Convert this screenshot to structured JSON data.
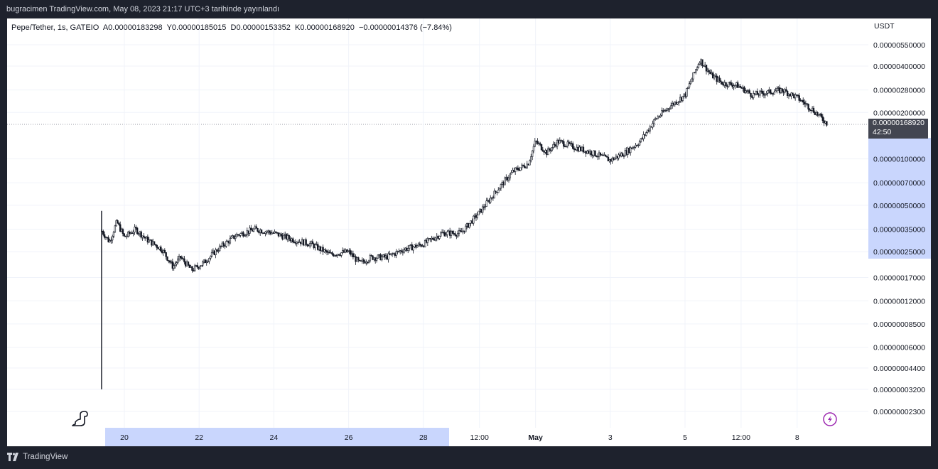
{
  "header": {
    "publisher_line": "bugracimen TradingView.com, May 08, 2023 21:17 UTC+3 tarihinde yayınlandı"
  },
  "legend": {
    "symbol": "Pepe/Tether, 1s, GATEIO",
    "open": "A0.00000183298",
    "high": "Y0.00000185015",
    "low": "D0.00000153352",
    "close": "K0.00000168920",
    "change": "−0.00000014376 (−7.84%)"
  },
  "price_axis": {
    "unit": "USDT",
    "current_price": "0.00000168920",
    "countdown": "42:50"
  },
  "footer": {
    "brand": "TradingView"
  },
  "colors": {
    "background": "#1e222d",
    "plot": "#ffffff",
    "candles": "#131722",
    "selection": "#c9d6fd",
    "tag": "#434651",
    "accent": "#9c27b0"
  },
  "chart_data": {
    "type": "candlestick-line",
    "scale": "log",
    "y_ticks": [
      "0.00000550000",
      "0.00000400000",
      "0.00000280000",
      "0.00000200000",
      "0.00000100000",
      "0.00000070000",
      "0.00000050000",
      "0.00000035000",
      "0.00000025000",
      "0.00000017000",
      "0.00000012000",
      "0.00000008500",
      "0.00000006000",
      "0.00000004400",
      "0.00000003200",
      "0.00000002300"
    ],
    "y_tick_values": [
      5.5e-06,
      4e-06,
      2.8e-06,
      2e-06,
      1e-06,
      7e-07,
      5e-07,
      3.5e-07,
      2.5e-07,
      1.7e-07,
      1.2e-07,
      8.5e-08,
      6e-08,
      4.4e-08,
      3.2e-08,
      2.3e-08
    ],
    "x_ticks": [
      "20",
      "22",
      "24",
      "26",
      "28",
      "12:00",
      "May",
      "3",
      "5",
      "12:00",
      "8"
    ],
    "x_tick_days": [
      20,
      22,
      24,
      26,
      28,
      29.5,
      31,
      33,
      35,
      36.5,
      38
    ],
    "series": [
      {
        "days": [
          19.4,
          19.6,
          19.8,
          20.0,
          20.3,
          20.6,
          21.0,
          21.3,
          21.5,
          21.8,
          22.1,
          22.5,
          23.0,
          23.5,
          24.0,
          24.5,
          25.0,
          25.5,
          26.0,
          26.3,
          26.6,
          27.0,
          27.5,
          28.0,
          28.5,
          29.0,
          29.5,
          30.0,
          30.4,
          30.8,
          31.0,
          31.3,
          31.6,
          32.0,
          32.5,
          33.0,
          33.4,
          33.8,
          34.2,
          34.6,
          35.0,
          35.4,
          35.7,
          36.0,
          36.4,
          36.8,
          37.2,
          37.6,
          38.0,
          38.4,
          38.8
        ],
        "close": [
          3.4e-07,
          2.9e-07,
          3.9e-07,
          3.1e-07,
          3.5e-07,
          3e-07,
          2.6e-07,
          2e-07,
          2.3e-07,
          1.9e-07,
          2.1e-07,
          2.6e-07,
          3.2e-07,
          3.5e-07,
          3.3e-07,
          3e-07,
          2.8e-07,
          2.4e-07,
          2.5e-07,
          2.1e-07,
          2.3e-07,
          2.3e-07,
          2.6e-07,
          2.8e-07,
          3.3e-07,
          3.3e-07,
          4.5e-07,
          6.4e-07,
          8.3e-07,
          9.3e-07,
          1.3e-06,
          1.1e-06,
          1.3e-06,
          1.2e-06,
          1.1e-06,
          9.8e-07,
          1.1e-06,
          1.3e-06,
          1.8e-06,
          2.2e-06,
          2.6e-06,
          4.4e-06,
          3.5e-06,
          3.1e-06,
          3e-06,
          2.6e-06,
          2.7e-06,
          2.8e-06,
          2.5e-06,
          2.1e-06,
          1.7e-06
        ]
      }
    ],
    "spike_low": 3.2e-08
  }
}
